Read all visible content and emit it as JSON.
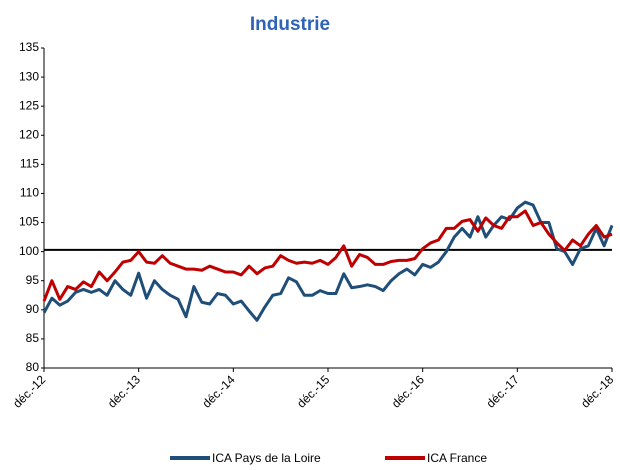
{
  "chart_data": {
    "type": "line",
    "title": "Industrie",
    "categories": [
      "déc.-12",
      null,
      null,
      null,
      null,
      null,
      null,
      null,
      null,
      null,
      null,
      null,
      "déc.-13",
      null,
      null,
      null,
      null,
      null,
      null,
      null,
      null,
      null,
      null,
      null,
      "déc.-14",
      null,
      null,
      null,
      null,
      null,
      null,
      null,
      null,
      null,
      null,
      null,
      "déc.-15",
      null,
      null,
      null,
      null,
      null,
      null,
      null,
      null,
      null,
      null,
      null,
      "déc.-16",
      null,
      null,
      null,
      null,
      null,
      null,
      null,
      null,
      null,
      null,
      null,
      "déc.-17",
      null,
      null,
      null,
      null,
      null,
      null,
      null,
      null,
      null,
      null,
      null,
      "déc.-18"
    ],
    "series": [
      {
        "name": "ICA Pays de la Loire",
        "color": "#1f4e79",
        "values": [
          89.5,
          92,
          90.8,
          91.5,
          93,
          93.5,
          93,
          93.5,
          92.5,
          95,
          93.5,
          92.5,
          96.3,
          92,
          95,
          93.5,
          92.5,
          91.8,
          88.8,
          94,
          91.3,
          91,
          92.8,
          92.5,
          91,
          91.5,
          89.8,
          88.2,
          90.5,
          92.5,
          92.8,
          95.5,
          94.8,
          92.5,
          92.5,
          93.3,
          92.8,
          92.8,
          96.2,
          93.8,
          94,
          94.3,
          94,
          93.3,
          95,
          96.2,
          97,
          96,
          97.8,
          97.3,
          98.2,
          100,
          102.5,
          104,
          102.5,
          106,
          102.5,
          104.5,
          106,
          105.5,
          107.5,
          108.5,
          108,
          105,
          105,
          100.5,
          100,
          97.8,
          100.5,
          101,
          104,
          101,
          104.5
        ]
      },
      {
        "name": "ICA France",
        "color": "#c00000",
        "values": [
          91.5,
          95,
          91.8,
          94,
          93.5,
          94.8,
          94,
          96.5,
          95,
          96.5,
          98.2,
          98.5,
          100,
          98.2,
          98,
          99.3,
          98,
          97.5,
          97,
          97,
          96.8,
          97.5,
          97,
          96.5,
          96.5,
          96,
          97.5,
          96.2,
          97.2,
          97.5,
          99.3,
          98.5,
          98,
          98.2,
          98,
          98.5,
          97.8,
          99,
          101,
          97.5,
          99.5,
          99,
          97.8,
          97.8,
          98.3,
          98.5,
          98.5,
          98.8,
          100.5,
          101.5,
          102,
          104,
          104,
          105.2,
          105.5,
          103.5,
          105.8,
          104.5,
          104,
          106,
          106,
          107,
          104.5,
          105,
          103,
          101.5,
          100.2,
          102,
          101,
          103,
          104.5,
          102.5,
          103
        ]
      }
    ],
    "reference_line": 100.3,
    "ylim": [
      80,
      135
    ],
    "yticks": [
      80,
      85,
      90,
      95,
      100,
      105,
      110,
      115,
      120,
      125,
      130,
      135
    ],
    "grid": false,
    "legend": "bottom"
  }
}
